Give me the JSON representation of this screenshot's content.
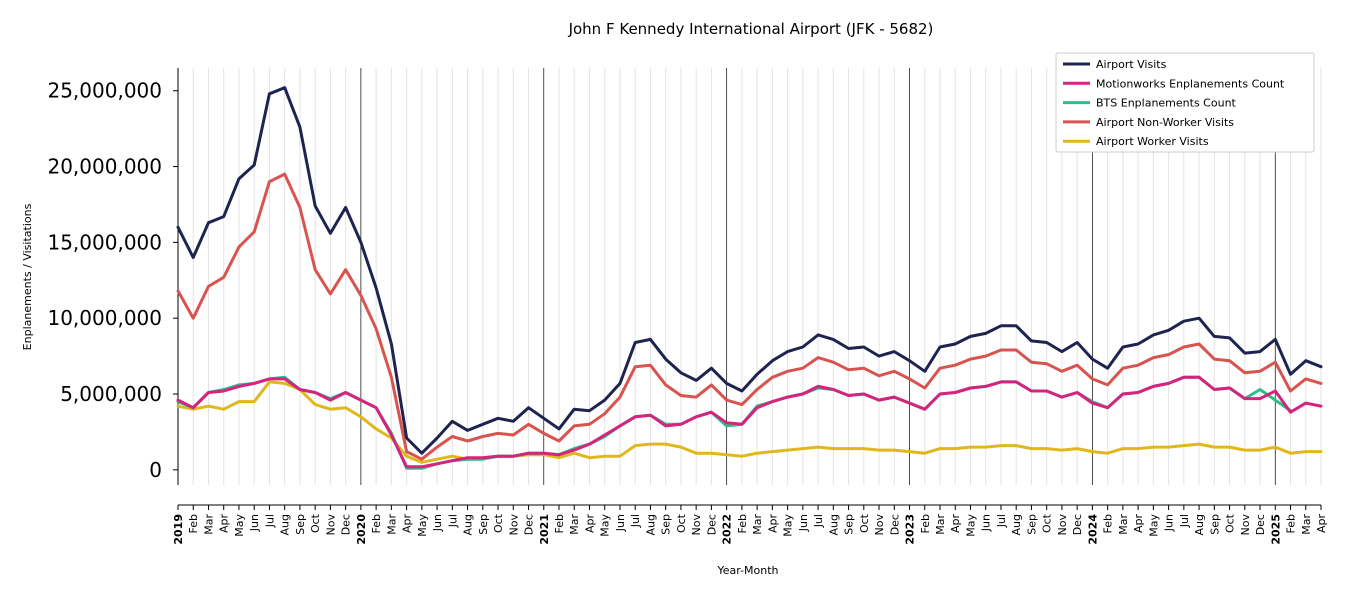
{
  "chart_data": {
    "type": "line",
    "title": "John F Kennedy International Airport (JFK - 5682)",
    "xlabel": "Year-Month",
    "ylabel": "Enplanements / Visitations",
    "ylim": [
      -1000000,
      26500000
    ],
    "yticks": [
      0,
      5000000,
      10000000,
      15000000,
      20000000,
      25000000
    ],
    "ytick_labels": [
      "0",
      "5,000,000",
      "10,000,000",
      "15,000,000",
      "20,000,000",
      "25,000,000"
    ],
    "grid": "vertical lines at every month, darker at each year start",
    "legend_position": "top-right",
    "x": [
      "2019-01",
      "2019-02",
      "2019-03",
      "2019-04",
      "2019-05",
      "2019-06",
      "2019-07",
      "2019-08",
      "2019-09",
      "2019-10",
      "2019-11",
      "2019-12",
      "2020-01",
      "2020-02",
      "2020-03",
      "2020-04",
      "2020-05",
      "2020-06",
      "2020-07",
      "2020-08",
      "2020-09",
      "2020-10",
      "2020-11",
      "2020-12",
      "2021-01",
      "2021-02",
      "2021-03",
      "2021-04",
      "2021-05",
      "2021-06",
      "2021-07",
      "2021-08",
      "2021-09",
      "2021-10",
      "2021-11",
      "2021-12",
      "2022-01",
      "2022-02",
      "2022-03",
      "2022-04",
      "2022-05",
      "2022-06",
      "2022-07",
      "2022-08",
      "2022-09",
      "2022-10",
      "2022-11",
      "2022-12",
      "2023-01",
      "2023-02",
      "2023-03",
      "2023-04",
      "2023-05",
      "2023-06",
      "2023-07",
      "2023-08",
      "2023-09",
      "2023-10",
      "2023-11",
      "2023-12",
      "2024-01",
      "2024-02",
      "2024-03",
      "2024-04",
      "2024-05",
      "2024-06",
      "2024-07",
      "2024-08",
      "2024-09",
      "2024-10",
      "2024-11",
      "2024-12",
      "2025-01",
      "2025-02",
      "2025-03",
      "2025-04"
    ],
    "x_tick_labels": [
      "2019",
      "Feb",
      "Mar",
      "Apr",
      "May",
      "Jun",
      "Jul",
      "Aug",
      "Sep",
      "Oct",
      "Nov",
      "Dec",
      "2020",
      "Feb",
      "Mar",
      "Apr",
      "May",
      "Jun",
      "Jul",
      "Aug",
      "Sep",
      "Oct",
      "Nov",
      "Dec",
      "2021",
      "Feb",
      "Mar",
      "Apr",
      "May",
      "Jun",
      "Jul",
      "Aug",
      "Sep",
      "Oct",
      "Nov",
      "Dec",
      "2022",
      "Feb",
      "Mar",
      "Apr",
      "May",
      "Jun",
      "Jul",
      "Aug",
      "Sep",
      "Oct",
      "Nov",
      "Dec",
      "2023",
      "Feb",
      "Mar",
      "Apr",
      "May",
      "Jun",
      "Jul",
      "Aug",
      "Sep",
      "Oct",
      "Nov",
      "Dec",
      "2024",
      "Feb",
      "Mar",
      "Apr",
      "May",
      "Jun",
      "Jul",
      "Aug",
      "Sep",
      "Oct",
      "Nov",
      "Dec",
      "2025",
      "Feb",
      "Mar",
      "Apr"
    ],
    "series": [
      {
        "name": "Airport Visits",
        "color": "#1f2350",
        "values": [
          16000000,
          14000000,
          16300000,
          16700000,
          19200000,
          20100000,
          24800000,
          25200000,
          22600000,
          17400000,
          15600000,
          17300000,
          15000000,
          12000000,
          8300000,
          2100000,
          1100000,
          2100000,
          3200000,
          2600000,
          3000000,
          3400000,
          3200000,
          4100000,
          3400000,
          2700000,
          4000000,
          3900000,
          4600000,
          5700000,
          8400000,
          8600000,
          7300000,
          6400000,
          5900000,
          6700000,
          5700000,
          5200000,
          6300000,
          7200000,
          7800000,
          8100000,
          8900000,
          8600000,
          8000000,
          8100000,
          7500000,
          7800000,
          7200000,
          6500000,
          8100000,
          8300000,
          8800000,
          9000000,
          9500000,
          9500000,
          8500000,
          8400000,
          7800000,
          8400000,
          7300000,
          6700000,
          8100000,
          8300000,
          8900000,
          9200000,
          9800000,
          10000000,
          8800000,
          8700000,
          7700000,
          7800000,
          8600000,
          6300000,
          7200000,
          6800000
        ]
      },
      {
        "name": "Motionworks Enplanements Count",
        "color": "#d6237f",
        "values": [
          4600000,
          4100000,
          5100000,
          5200000,
          5500000,
          5700000,
          6000000,
          6000000,
          5300000,
          5100000,
          4600000,
          5100000,
          4600000,
          4100000,
          2300000,
          200000,
          200000,
          400000,
          600000,
          800000,
          800000,
          900000,
          900000,
          1100000,
          1100000,
          1000000,
          1300000,
          1700000,
          2300000,
          2900000,
          3500000,
          3600000,
          2900000,
          3000000,
          3500000,
          3800000,
          3100000,
          3000000,
          4100000,
          4500000,
          4800000,
          5000000,
          5500000,
          5300000,
          4900000,
          5000000,
          4600000,
          4800000,
          4400000,
          4000000,
          5000000,
          5100000,
          5400000,
          5500000,
          5800000,
          5800000,
          5200000,
          5200000,
          4800000,
          5100000,
          4400000,
          4100000,
          5000000,
          5100000,
          5500000,
          5700000,
          6100000,
          6100000,
          5300000,
          5400000,
          4700000,
          4700000,
          5200000,
          3800000,
          4400000,
          4200000
        ]
      },
      {
        "name": "BTS Enplanements Count",
        "color": "#2dbf8a",
        "values": [
          4500000,
          4100000,
          5100000,
          5300000,
          5600000,
          5700000,
          6000000,
          6100000,
          5300000,
          5100000,
          4700000,
          5100000,
          4600000,
          4100000,
          2400000,
          100000,
          100000,
          400000,
          600000,
          700000,
          700000,
          900000,
          900000,
          1100000,
          1100000,
          1000000,
          1400000,
          1700000,
          2200000,
          2900000,
          3500000,
          3600000,
          3000000,
          3000000,
          3500000,
          3800000,
          2900000,
          3000000,
          4200000,
          4500000,
          4800000,
          5000000,
          5400000,
          5300000,
          4900000,
          5000000,
          4600000,
          4800000,
          4400000,
          4000000,
          5000000,
          5100000,
          5400000,
          5500000,
          5800000,
          5800000,
          5200000,
          5200000,
          4800000,
          5100000,
          4500000,
          4100000,
          5000000,
          5100000,
          5500000,
          5700000,
          6100000,
          6100000,
          5300000,
          5400000,
          4700000,
          5300000,
          4600000,
          3900000,
          null,
          null
        ]
      },
      {
        "name": "Airport Non-Worker Visits",
        "color": "#d9534f",
        "values": [
          11800000,
          10000000,
          12100000,
          12700000,
          14700000,
          15700000,
          19000000,
          19500000,
          17300000,
          13200000,
          11600000,
          13200000,
          11500000,
          9300000,
          6100000,
          1200000,
          700000,
          1500000,
          2200000,
          1900000,
          2200000,
          2400000,
          2300000,
          3000000,
          2400000,
          1900000,
          2900000,
          3000000,
          3700000,
          4800000,
          6800000,
          6900000,
          5600000,
          4900000,
          4800000,
          5600000,
          4600000,
          4300000,
          5300000,
          6100000,
          6500000,
          6700000,
          7400000,
          7100000,
          6600000,
          6700000,
          6200000,
          6500000,
          6000000,
          5400000,
          6700000,
          6900000,
          7300000,
          7500000,
          7900000,
          7900000,
          7100000,
          7000000,
          6500000,
          6900000,
          6000000,
          5600000,
          6700000,
          6900000,
          7400000,
          7600000,
          8100000,
          8300000,
          7300000,
          7200000,
          6400000,
          6500000,
          7100000,
          5200000,
          6000000,
          5700000
        ]
      },
      {
        "name": "Airport Worker Visits",
        "color": "#e0b81c",
        "values": [
          4200000,
          4000000,
          4200000,
          4000000,
          4500000,
          4500000,
          5800000,
          5700000,
          5300000,
          4300000,
          4000000,
          4100000,
          3500000,
          2700000,
          2100000,
          900000,
          500000,
          700000,
          900000,
          700000,
          800000,
          900000,
          900000,
          1000000,
          1000000,
          800000,
          1100000,
          800000,
          900000,
          900000,
          1600000,
          1700000,
          1700000,
          1500000,
          1100000,
          1100000,
          1000000,
          900000,
          1100000,
          1200000,
          1300000,
          1400000,
          1500000,
          1400000,
          1400000,
          1400000,
          1300000,
          1300000,
          1200000,
          1100000,
          1400000,
          1400000,
          1500000,
          1500000,
          1600000,
          1600000,
          1400000,
          1400000,
          1300000,
          1400000,
          1200000,
          1100000,
          1400000,
          1400000,
          1500000,
          1500000,
          1600000,
          1700000,
          1500000,
          1500000,
          1300000,
          1300000,
          1500000,
          1100000,
          1200000,
          1200000
        ]
      }
    ]
  }
}
